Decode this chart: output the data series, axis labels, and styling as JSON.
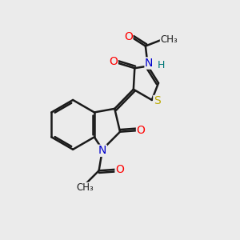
{
  "bg_color": "#ebebeb",
  "bond_color": "#1a1a1a",
  "bond_width": 1.8,
  "atom_colors": {
    "O": "#ff0000",
    "N": "#0000cc",
    "S": "#bbaa00",
    "H": "#007777",
    "C": "#1a1a1a"
  },
  "figsize": [
    3.0,
    3.0
  ],
  "dpi": 100
}
